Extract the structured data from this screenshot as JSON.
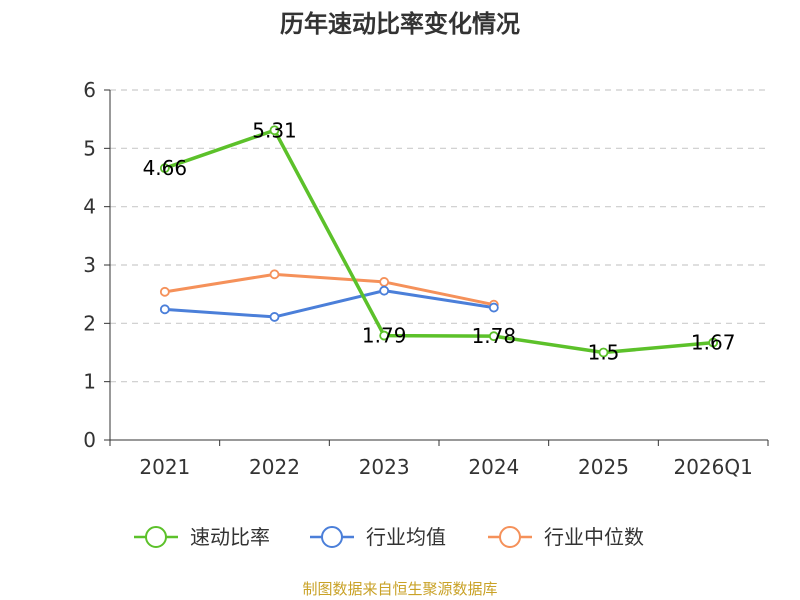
{
  "chart_data": {
    "type": "line",
    "title": "历年速动比率变化情况",
    "categories": [
      "2021",
      "2022",
      "2023",
      "2024",
      "2025",
      "2026Q1"
    ],
    "yticks": [
      "0",
      "1",
      "2",
      "3",
      "4",
      "5",
      "6"
    ],
    "ylim": [
      0,
      6
    ],
    "grid": true,
    "legend_position": "bottom",
    "series": [
      {
        "name": "速动比率",
        "color": "#5cc12a",
        "values": [
          4.66,
          5.31,
          1.79,
          1.78,
          1.5,
          1.67
        ],
        "labels": [
          "4.66",
          "5.31",
          "1.79",
          "1.78",
          "1.5",
          "1.67"
        ]
      },
      {
        "name": "行业均值",
        "color": "#4b7fd9",
        "values": [
          2.24,
          2.11,
          2.56,
          2.27,
          null,
          null
        ]
      },
      {
        "name": "行业中位数",
        "color": "#f5915a",
        "values": [
          2.54,
          2.84,
          2.71,
          2.32,
          null,
          null
        ]
      }
    ]
  },
  "source_text": "制图数据来自恒生聚源数据库",
  "source_color": "#c9a227",
  "axis_color": "#333333",
  "grid_color": "#cccccc"
}
